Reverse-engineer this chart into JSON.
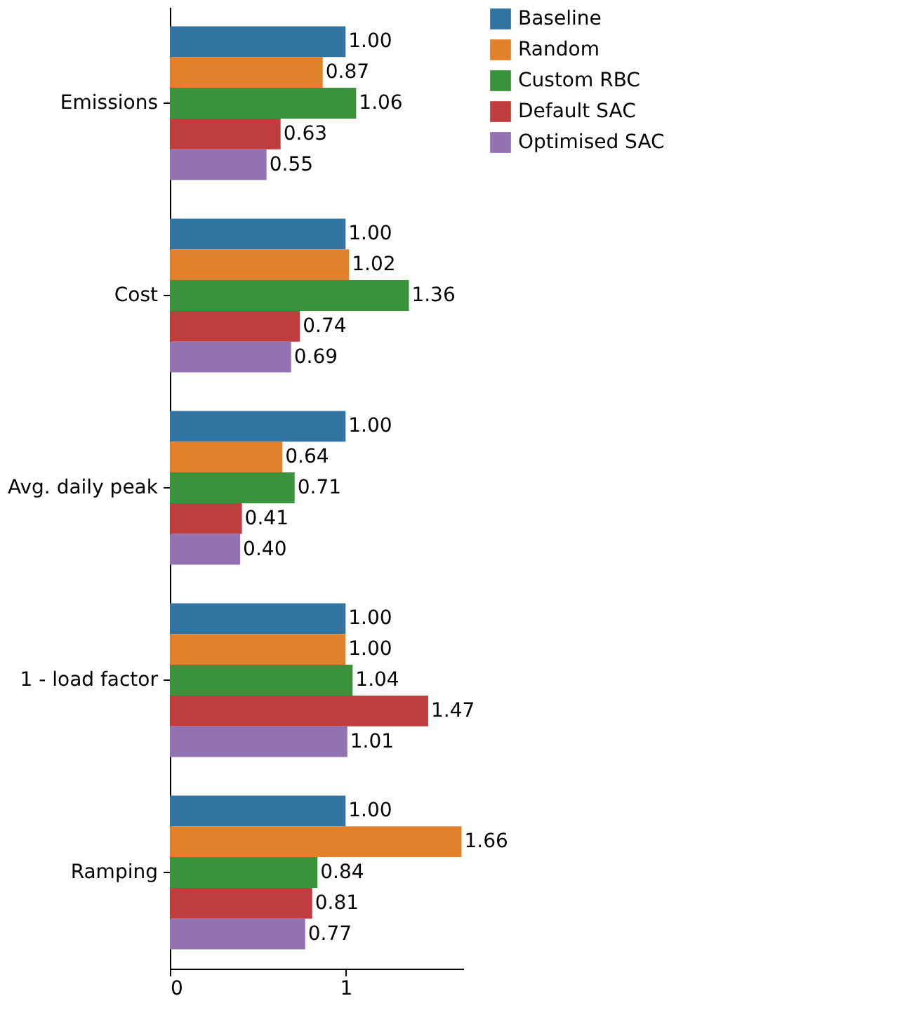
{
  "chart_data": {
    "type": "bar",
    "orientation": "horizontal",
    "categories": [
      "Emissions",
      "Cost",
      "Avg. daily peak",
      "1 - load factor",
      "Ramping"
    ],
    "series": [
      {
        "name": "Baseline",
        "color": "#3274a1",
        "values": [
          1.0,
          1.0,
          1.0,
          1.0,
          1.0
        ],
        "value_labels": [
          "1.00",
          "1.00",
          "1.00",
          "1.00",
          "1.00"
        ]
      },
      {
        "name": "Random",
        "color": "#e1812c",
        "values": [
          0.87,
          1.02,
          0.64,
          1.0,
          1.66
        ],
        "value_labels": [
          "0.87",
          "1.02",
          "0.64",
          "1.00",
          "1.66"
        ]
      },
      {
        "name": "Custom RBC",
        "color": "#3a923a",
        "values": [
          1.06,
          1.36,
          0.71,
          1.04,
          0.84
        ],
        "value_labels": [
          "1.06",
          "1.36",
          "0.71",
          "1.04",
          "0.84"
        ]
      },
      {
        "name": "Default SAC",
        "color": "#c03d3e",
        "values": [
          0.63,
          0.74,
          0.41,
          1.47,
          0.81
        ],
        "value_labels": [
          "0.63",
          "0.74",
          "0.41",
          "1.47",
          "0.81"
        ]
      },
      {
        "name": "Optimised SAC",
        "color": "#9372b2",
        "values": [
          0.55,
          0.69,
          0.4,
          1.01,
          0.77
        ],
        "value_labels": [
          "0.55",
          "0.69",
          "0.40",
          "1.01",
          "0.77"
        ]
      }
    ],
    "xlim": [
      0,
      1.67
    ],
    "xticks": [
      0,
      1
    ],
    "grid": false,
    "legend": "top right"
  }
}
